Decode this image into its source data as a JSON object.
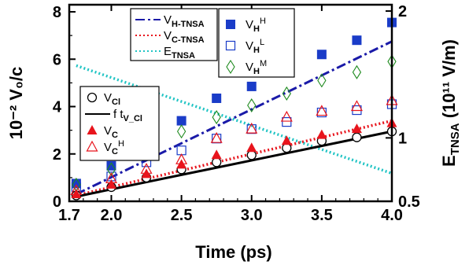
{
  "chart_data": {
    "type": "scatter",
    "xlabel": "Time (ps)",
    "ylabel_left": "10⁻² V₀/c",
    "ylabel_right": "E_TNSA (10¹¹ V/m)",
    "xlim": [
      1.7,
      4.0
    ],
    "ylim_left": [
      0,
      8.3
    ],
    "ylim_right": [
      0.5,
      2.05
    ],
    "x_ticks": [
      "1.7",
      "2.0",
      "2.5",
      "3.0",
      "3.5",
      "4.0"
    ],
    "y_ticks_left": [
      "0",
      "2",
      "4",
      "6",
      "8"
    ],
    "y_ticks_right": [
      "0.5",
      "1",
      "2"
    ],
    "grid": false,
    "series": [
      {
        "name": "V_H-TNSA",
        "kind": "line",
        "axis": "left",
        "style": "dash-dot",
        "color": "#1a1aa8",
        "x": [
          1.75,
          4.0
        ],
        "y": [
          0.3,
          6.75
        ]
      },
      {
        "name": "V_C-TNSA",
        "kind": "line",
        "axis": "left",
        "style": "dotted",
        "color": "#e8141c",
        "x": [
          1.75,
          4.0
        ],
        "y": [
          0.25,
          3.4
        ]
      },
      {
        "name": "E_TNSA",
        "kind": "line",
        "axis": "right",
        "style": "dotted",
        "color": "#20c4c4",
        "x": [
          1.75,
          4.0
        ],
        "y": [
          1.57,
          0.72
        ]
      },
      {
        "name": "V_H^H",
        "kind": "marker",
        "marker": "filled-square",
        "axis": "left",
        "color": "#1a3cc8",
        "x": [
          1.75,
          2.0,
          2.25,
          2.5,
          2.75,
          3.0,
          3.25,
          3.5,
          3.75,
          4.0
        ],
        "y": [
          0.75,
          1.5,
          2.55,
          3.4,
          4.35,
          4.85,
          5.6,
          6.2,
          6.8,
          7.55
        ]
      },
      {
        "name": "V_H^L",
        "kind": "marker",
        "marker": "open-square",
        "axis": "left",
        "color": "#1a3cc8",
        "x": [
          1.75,
          2.0,
          2.25,
          2.5,
          2.75,
          3.0,
          3.25,
          3.5,
          3.75,
          4.0
        ],
        "y": [
          0.6,
          1.05,
          1.65,
          2.15,
          2.65,
          3.05,
          3.35,
          3.75,
          3.85,
          4.1
        ]
      },
      {
        "name": "V_H^M",
        "kind": "marker",
        "marker": "open-diamond",
        "axis": "left",
        "color": "#1e8a1e",
        "x": [
          1.75,
          2.0,
          2.25,
          2.5,
          2.75,
          3.0,
          3.25,
          3.5,
          3.75,
          4.0
        ],
        "y": [
          0.7,
          1.35,
          2.2,
          2.95,
          3.55,
          4.05,
          4.55,
          5.1,
          5.45,
          5.9
        ]
      },
      {
        "name": "V_Cl",
        "kind": "marker",
        "marker": "open-circle",
        "axis": "left",
        "color": "#000000",
        "x": [
          1.75,
          2.0,
          2.25,
          2.5,
          2.75,
          3.0,
          3.25,
          3.5,
          3.75,
          4.0
        ],
        "y": [
          0.25,
          0.6,
          1.0,
          1.35,
          1.65,
          1.95,
          2.25,
          2.55,
          2.7,
          2.95
        ]
      },
      {
        "name": "f t_V_Cl",
        "kind": "line",
        "axis": "left",
        "style": "solid",
        "color": "#000000",
        "x": [
          1.75,
          4.0
        ],
        "y": [
          0.2,
          2.95
        ]
      },
      {
        "name": "V_C",
        "kind": "marker",
        "marker": "filled-triangle",
        "axis": "left",
        "color": "#e8141c",
        "x": [
          1.75,
          2.0,
          2.25,
          2.5,
          2.75,
          3.0,
          3.25,
          3.5,
          3.75,
          4.0
        ],
        "y": [
          0.3,
          0.7,
          1.15,
          1.55,
          1.95,
          2.25,
          2.55,
          2.8,
          3.05,
          3.3
        ]
      },
      {
        "name": "V_C^H",
        "kind": "marker",
        "marker": "open-triangle",
        "axis": "left",
        "color": "#e8141c",
        "x": [
          1.75,
          2.0,
          2.25,
          2.5,
          2.75,
          3.0,
          3.25,
          3.5,
          3.75,
          4.0
        ],
        "y": [
          0.45,
          0.95,
          1.35,
          1.75,
          2.65,
          3.05,
          3.55,
          3.8,
          4.0,
          4.25
        ]
      }
    ],
    "legends": [
      {
        "position": "top-center",
        "items": [
          {
            "text": "V_H-TNSA",
            "series": "V_H-TNSA"
          },
          {
            "text": "V_C-TNSA",
            "series": "V_C-TNSA"
          },
          {
            "text": "E_TNSA",
            "series": "E_TNSA"
          }
        ]
      },
      {
        "position": "top-center-right",
        "items": [
          {
            "text": "V_H^H",
            "series": "V_H^H"
          },
          {
            "text": "V_H^L",
            "series": "V_H^L"
          },
          {
            "text": "V_H^M",
            "series": "V_H^M"
          }
        ]
      },
      {
        "position": "center-left",
        "items": [
          {
            "text": "V_Cl",
            "series": "V_Cl"
          },
          {
            "text": "f t_V_Cl",
            "series": "f t_V_Cl"
          },
          {
            "text": "V_C",
            "series": "V_C"
          },
          {
            "text": "V_C^H",
            "series": "V_C^H"
          }
        ]
      }
    ]
  }
}
